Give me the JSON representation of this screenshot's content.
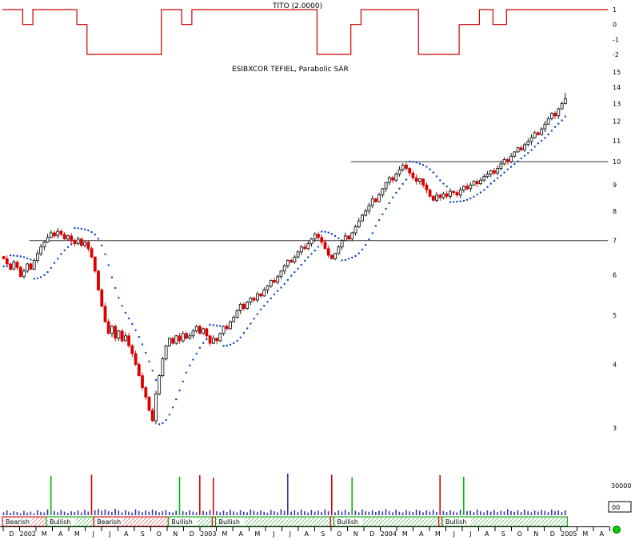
{
  "titles": {
    "indicator": "TITO (2.0000)",
    "main": "ESIBXCOR TEFIEL, Parabolic SAR"
  },
  "colors": {
    "indicator_line": "#cc0000",
    "candle_down": "#dd0000",
    "candle_up_fill": "#ffffff",
    "candle_up_border": "#000000",
    "sar": "#0040c0",
    "volume": "#3434b4",
    "bullish": "#00a000",
    "bearish": "#cc0000",
    "trend_line": "#333333",
    "status_icon": "#00cc00"
  },
  "axes": {
    "indicator_y_ticks": [
      1,
      0,
      -1,
      -2
    ],
    "price_y_ticks": [
      15,
      14,
      13,
      12,
      11,
      10,
      9,
      8,
      7,
      6,
      5,
      4,
      3
    ],
    "volume_labels": [
      "30000",
      "00"
    ],
    "x_month_labels": [
      "D",
      "2002",
      "M",
      "A",
      "M",
      "J",
      "J",
      "A",
      "S",
      "O",
      "N",
      "D",
      "2003",
      "M",
      "A",
      "M",
      "J",
      "J",
      "A",
      "S",
      "O",
      "N",
      "D",
      "2004",
      "M",
      "A",
      "M",
      "J",
      "J",
      "A",
      "S",
      "O",
      "N",
      "D",
      "2005",
      "M",
      "A"
    ]
  },
  "status_icon": {
    "shape": "circle",
    "color": "#00cc00"
  },
  "chart_data": {
    "type": "candlestick",
    "title": "ESIBXCOR TEFIEL, Parabolic SAR",
    "overlay": "Parabolic SAR",
    "sar_params": {
      "af_step": 0.02,
      "af_max": 0.2
    },
    "y_scale": "log",
    "y_range": [
      2.8,
      15.5
    ],
    "interval": "weekly",
    "x_start": "Dec 2001",
    "x_end": "Apr 2005",
    "trend_lines": [
      {
        "price": 10.0,
        "from_week": 103,
        "to_week": 179
      },
      {
        "price": 7.0,
        "from_week": 8,
        "to_week": 179
      }
    ],
    "weekly_closes": [
      6.45,
      6.3,
      6.15,
      6.35,
      6.2,
      5.95,
      6.1,
      6.3,
      6.15,
      6.4,
      6.6,
      6.8,
      6.95,
      7.1,
      7.25,
      7.15,
      7.3,
      7.2,
      7.05,
      7.15,
      7.0,
      6.9,
      7.05,
      6.85,
      6.95,
      6.75,
      6.5,
      6.1,
      5.6,
      5.2,
      4.85,
      4.6,
      4.75,
      4.5,
      4.65,
      4.45,
      4.55,
      4.35,
      4.2,
      4.0,
      3.8,
      3.6,
      3.45,
      3.25,
      3.1,
      3.5,
      3.8,
      4.1,
      4.35,
      4.5,
      4.4,
      4.55,
      4.45,
      4.6,
      4.5,
      4.55,
      4.65,
      4.75,
      4.6,
      4.7,
      4.55,
      4.4,
      4.5,
      4.45,
      4.6,
      4.75,
      4.7,
      4.85,
      4.95,
      5.1,
      5.25,
      5.15,
      5.3,
      5.4,
      5.35,
      5.5,
      5.45,
      5.6,
      5.7,
      5.85,
      5.8,
      5.95,
      6.1,
      6.25,
      6.4,
      6.35,
      6.5,
      6.65,
      6.8,
      6.75,
      6.9,
      7.05,
      7.2,
      7.1,
      6.95,
      6.75,
      6.55,
      6.45,
      6.6,
      6.8,
      7.0,
      7.15,
      7.05,
      7.25,
      7.45,
      7.65,
      7.85,
      8.0,
      8.2,
      8.45,
      8.35,
      8.6,
      8.85,
      9.1,
      9.3,
      9.2,
      9.45,
      9.65,
      9.85,
      9.7,
      9.5,
      9.3,
      9.15,
      9.25,
      9.0,
      8.8,
      8.55,
      8.4,
      8.6,
      8.5,
      8.65,
      8.55,
      8.75,
      8.7,
      8.6,
      8.8,
      8.95,
      8.85,
      9.0,
      9.15,
      9.05,
      9.2,
      9.35,
      9.45,
      9.6,
      9.5,
      9.7,
      9.9,
      10.1,
      10.0,
      10.25,
      10.45,
      10.65,
      10.55,
      10.8,
      10.95,
      11.15,
      11.4,
      11.3,
      11.6,
      11.85,
      12.15,
      12.45,
      12.3,
      12.7,
      13.0,
      13.3
    ],
    "indicator": {
      "name": "TITO (2.0000)",
      "type": "step-line",
      "levels": [
        1,
        0,
        -1,
        -2
      ],
      "segments": [
        {
          "from": 0,
          "to": 5,
          "v": 1
        },
        {
          "from": 6,
          "to": 8,
          "v": 0
        },
        {
          "from": 9,
          "to": 21,
          "v": 1
        },
        {
          "from": 22,
          "to": 24,
          "v": 0
        },
        {
          "from": 25,
          "to": 46,
          "v": -2
        },
        {
          "from": 47,
          "to": 52,
          "v": 1
        },
        {
          "from": 53,
          "to": 55,
          "v": 0
        },
        {
          "from": 56,
          "to": 92,
          "v": 1
        },
        {
          "from": 93,
          "to": 102,
          "v": -2
        },
        {
          "from": 103,
          "to": 105,
          "v": 0
        },
        {
          "from": 106,
          "to": 122,
          "v": 1
        },
        {
          "from": 123,
          "to": 134,
          "v": -2
        },
        {
          "from": 135,
          "to": 140,
          "v": 0
        },
        {
          "from": 141,
          "to": 144,
          "v": 1
        },
        {
          "from": 145,
          "to": 148,
          "v": 0
        },
        {
          "from": 149,
          "to": 178,
          "v": 1
        }
      ]
    },
    "volume": {
      "unit": 100,
      "values": [
        28,
        45,
        22,
        38,
        30,
        18,
        42,
        25,
        35,
        20,
        48,
        32,
        26,
        55,
        380,
        40,
        28,
        50,
        34,
        22,
        38,
        30,
        45,
        26,
        52,
        35,
        390,
        48,
        60,
        42,
        55,
        38,
        30,
        62,
        45,
        28,
        50,
        35,
        25,
        58,
        40,
        30,
        48,
        35,
        55,
        42,
        28,
        38,
        50,
        32,
        26,
        44,
        370,
        38,
        30,
        48,
        35,
        28,
        385,
        40,
        32,
        50,
        360,
        38,
        28,
        45,
        30,
        52,
        36,
        26,
        48,
        34,
        28,
        55,
        40,
        30,
        46,
        32,
        24,
        50,
        38,
        28,
        58,
        42,
        400,
        35,
        48,
        30,
        55,
        38,
        26,
        50,
        34,
        44,
        30,
        56,
        38,
        390,
        28,
        46,
        35,
        52,
        30,
        365,
        42,
        28,
        55,
        38,
        32,
        48,
        30,
        44,
        36,
        58,
        40,
        28,
        52,
        34,
        26,
        48,
        38,
        30,
        55,
        42,
        28,
        46,
        35,
        50,
        32,
        385,
        40,
        30,
        48,
        36,
        28,
        52,
        370,
        38,
        44,
        30,
        55,
        38,
        28,
        46,
        34,
        50,
        30,
        42,
        36,
        58,
        40,
        32,
        48,
        30,
        54,
        38,
        28,
        44,
        35,
        50,
        42,
        30,
        55,
        38,
        46,
        32,
        48
      ],
      "spike_colors": {
        "14": "#00bb00",
        "26": "#dd0000",
        "52": "#00bb00",
        "58": "#dd0000",
        "62": "#dd0000",
        "97": "#dd0000",
        "103": "#00bb00",
        "129": "#dd0000",
        "136": "#00bb00"
      }
    },
    "ribbon": {
      "segments": [
        {
          "label": "Bearish",
          "type": "bearish",
          "from": 0,
          "to": 12
        },
        {
          "label": "Bullish",
          "type": "bullish",
          "from": 13,
          "to": 26
        },
        {
          "label": "Bearish",
          "type": "bearish",
          "from": 27,
          "to": 48
        },
        {
          "label": "Bullish",
          "type": "bullish",
          "from": 49,
          "to": 61
        },
        {
          "label": "",
          "type": "bearish",
          "from": 62,
          "to": 62
        },
        {
          "label": "Bullish",
          "type": "bullish",
          "from": 63,
          "to": 96
        },
        {
          "label": "",
          "type": "bearish",
          "from": 97,
          "to": 97
        },
        {
          "label": "Bullish",
          "type": "bullish",
          "from": 98,
          "to": 128
        },
        {
          "label": "",
          "type": "bearish",
          "from": 129,
          "to": 129
        },
        {
          "label": "Bullish",
          "type": "bullish",
          "from": 130,
          "to": 166
        }
      ]
    }
  }
}
